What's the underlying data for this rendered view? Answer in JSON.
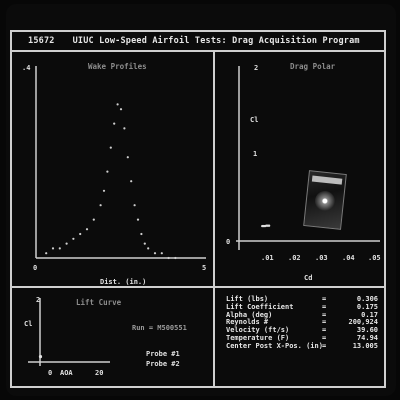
{
  "window": {
    "id": "15672",
    "title": "UIUC Low-Speed Airfoil Tests: Drag Acquisition Program"
  },
  "wake_panel": {
    "title": "Wake Profiles",
    "ytick_top": ".4",
    "xtick_left": "0",
    "xtick_right": "5",
    "xlabel": "Dist. (in.)"
  },
  "polar_panel": {
    "title": "Drag Polar",
    "ylabel": "Cl",
    "yticks": [
      "2",
      "1",
      "0"
    ],
    "xticks": [
      ".01",
      ".02",
      ".03",
      ".04",
      ".05"
    ],
    "xlabel": "Cd"
  },
  "lift_panel": {
    "title": "Lift Curve",
    "ylabel": "Cl",
    "ytick": "2",
    "xticks": [
      "0",
      "AOA",
      "20"
    ],
    "run_label": "Run = M500551",
    "probe1": "Probe #1",
    "probe2": "Probe #2"
  },
  "readout": [
    {
      "key": "Lift (lbs)",
      "value": "0.306"
    },
    {
      "key": "Lift Coefficient",
      "value": "0.175"
    },
    {
      "key": "Alpha (deg)",
      "value": "0.17"
    },
    {
      "key": "Reynolds #",
      "value": "200,924"
    },
    {
      "key": "Velocity (ft/s)",
      "value": "39.60"
    },
    {
      "key": "Temperature (F)",
      "value": "74.94"
    },
    {
      "key": "Center Post X-Pos. (in)",
      "value": "13.005"
    }
  ],
  "chart_data": [
    {
      "type": "scatter",
      "title": "Wake Profiles",
      "xlabel": "Dist. (in.)",
      "xlim": [
        0,
        5
      ],
      "ylim": [
        0,
        0.4
      ],
      "x": [
        0.3,
        0.5,
        0.7,
        0.9,
        1.1,
        1.3,
        1.5,
        1.7,
        1.9,
        2.0,
        2.1,
        2.2,
        2.3,
        2.4,
        2.5,
        2.6,
        2.7,
        2.8,
        2.9,
        3.0,
        3.1,
        3.2,
        3.3,
        3.5,
        3.7,
        3.9,
        4.1
      ],
      "y": [
        0.01,
        0.02,
        0.02,
        0.03,
        0.04,
        0.05,
        0.06,
        0.08,
        0.11,
        0.14,
        0.18,
        0.23,
        0.28,
        0.32,
        0.31,
        0.27,
        0.21,
        0.16,
        0.11,
        0.08,
        0.05,
        0.03,
        0.02,
        0.01,
        0.01,
        0.0,
        0.0
      ]
    },
    {
      "type": "scatter",
      "title": "Drag Polar",
      "xlabel": "Cd",
      "ylabel": "Cl",
      "xlim": [
        0,
        0.05
      ],
      "ylim": [
        0,
        2
      ],
      "x": [
        0.0085,
        0.009,
        0.0095,
        0.01,
        0.0105,
        0.011
      ],
      "y": [
        0.17,
        0.17,
        0.17,
        0.175,
        0.175,
        0.175
      ]
    },
    {
      "type": "scatter",
      "title": "Lift Curve",
      "xlabel": "AOA",
      "ylabel": "Cl",
      "xlim": [
        0,
        20
      ],
      "ylim": [
        0,
        2
      ],
      "x": [
        0.17
      ],
      "y": [
        0.175
      ]
    }
  ]
}
